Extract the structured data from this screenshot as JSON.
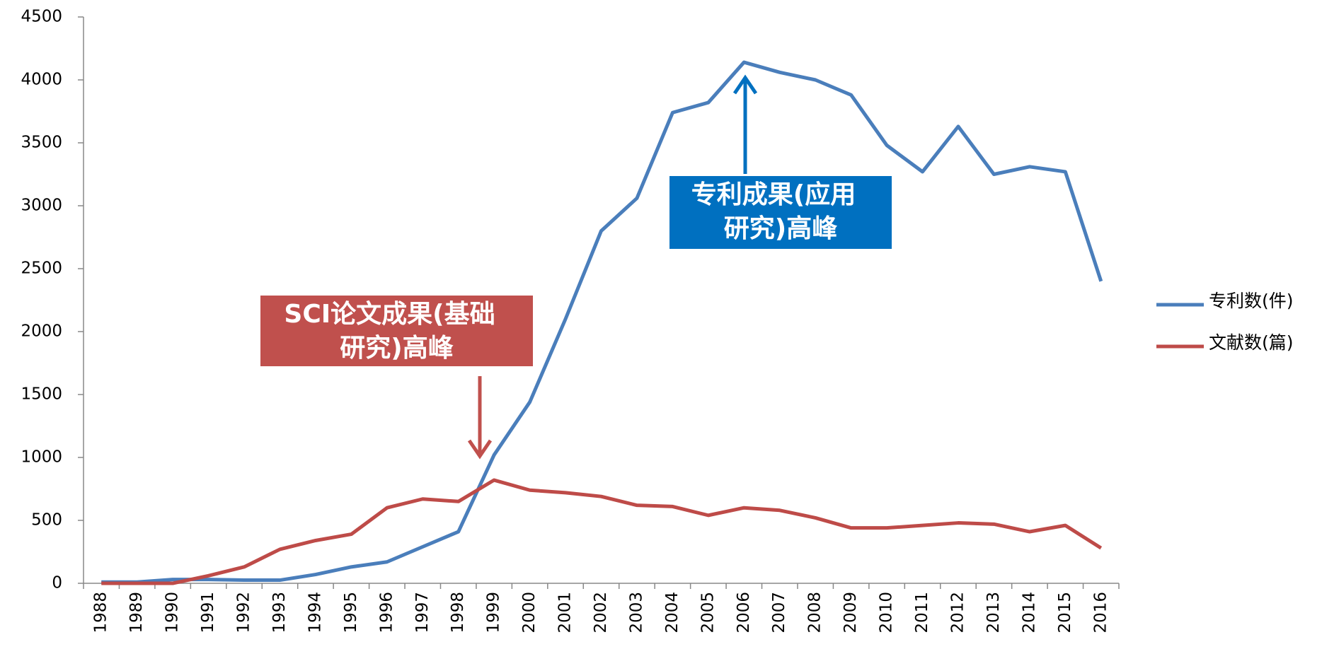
{
  "chart_data": {
    "type": "line",
    "categories": [
      "1988",
      "1989",
      "1990",
      "1991",
      "1992",
      "1993",
      "1994",
      "1995",
      "1996",
      "1997",
      "1998",
      "1999",
      "2000",
      "2001",
      "2002",
      "2003",
      "2004",
      "2005",
      "2006",
      "2007",
      "2008",
      "2009",
      "2010",
      "2011",
      "2012",
      "2013",
      "2014",
      "2015",
      "2016"
    ],
    "series": [
      {
        "name": "专利数(件)",
        "color": "#4a7ebb",
        "values": [
          10,
          10,
          30,
          30,
          25,
          25,
          70,
          130,
          170,
          290,
          410,
          1020,
          1440,
          2100,
          2800,
          3060,
          3740,
          3820,
          4140,
          4060,
          4000,
          3880,
          3480,
          3270,
          3630,
          3250,
          3310,
          3270,
          2400
        ]
      },
      {
        "name": "文献数(篇)",
        "color": "#be4b48",
        "values": [
          0,
          0,
          0,
          60,
          130,
          270,
          340,
          390,
          600,
          670,
          650,
          820,
          740,
          720,
          690,
          620,
          610,
          540,
          600,
          580,
          520,
          440,
          440,
          460,
          480,
          470,
          410,
          460,
          280
        ]
      }
    ],
    "ylim": [
      0,
      4500
    ],
    "yticks": [
      0,
      500,
      1000,
      1500,
      2000,
      2500,
      3000,
      3500,
      4000,
      4500
    ],
    "grid": false,
    "legend": "right",
    "annotations": [
      {
        "lines": [
          "SCI论文成果(基础",
          "研究)高峰"
        ],
        "color": "#c0504d"
      },
      {
        "lines": [
          "专利成果(应用",
          "研究)高峰"
        ],
        "color": "#0070c0"
      }
    ]
  }
}
